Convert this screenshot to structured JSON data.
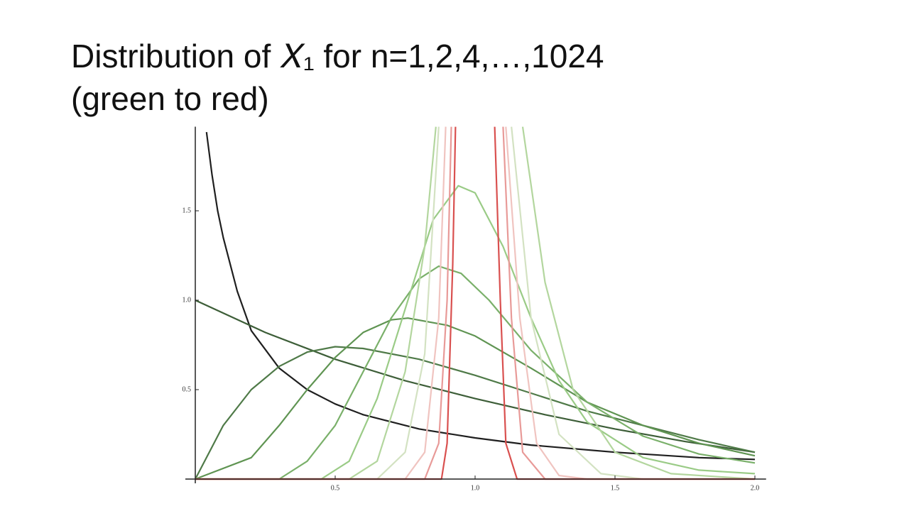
{
  "chart_data": {
    "type": "line",
    "title_lines": [
      "Distribution of 𝑋₁ for n=1,2,4,…,1024",
      "(green to red)"
    ],
    "xlim": [
      0,
      2.04
    ],
    "ylim": [
      0,
      1.97
    ],
    "xticks": [
      0.5,
      {
        "value": 1,
        "label": "1.0"
      },
      1.5,
      {
        "value": 2,
        "label": "2.0"
      }
    ],
    "yticks": [
      0.5,
      {
        "value": 1,
        "label": "1.0"
      },
      1.5
    ],
    "series": [
      {
        "color": "#1f1f1f",
        "x": [
          0.04,
          0.06,
          0.08,
          0.1,
          0.15,
          0.2,
          0.3,
          0.4,
          0.5,
          0.6,
          0.8,
          1.0,
          1.2,
          1.5,
          1.8,
          2.0
        ],
        "values": [
          1.94,
          1.7,
          1.5,
          1.35,
          1.05,
          0.83,
          0.62,
          0.5,
          0.42,
          0.36,
          0.28,
          0.23,
          0.19,
          0.15,
          0.12,
          0.11
        ]
      },
      {
        "color": "#3d5e38",
        "x": [
          0,
          0.25,
          0.5,
          0.75,
          1.0,
          1.25,
          1.5,
          1.75,
          2.0
        ],
        "values": [
          1.0,
          0.82,
          0.67,
          0.55,
          0.45,
          0.36,
          0.28,
          0.21,
          0.15
        ]
      },
      {
        "color": "#4f7a48",
        "x": [
          0,
          0.1,
          0.2,
          0.3,
          0.4,
          0.5,
          0.6,
          0.8,
          1.0,
          1.2,
          1.4,
          1.6,
          1.8,
          2.0
        ],
        "values": [
          0,
          0.3,
          0.5,
          0.63,
          0.71,
          0.74,
          0.73,
          0.67,
          0.58,
          0.48,
          0.38,
          0.3,
          0.22,
          0.15
        ]
      },
      {
        "color": "#5f9452",
        "x": [
          0,
          0.2,
          0.3,
          0.4,
          0.5,
          0.6,
          0.7,
          0.76,
          0.9,
          1.0,
          1.2,
          1.4,
          1.6,
          1.8,
          2.0
        ],
        "values": [
          0,
          0.12,
          0.3,
          0.5,
          0.68,
          0.82,
          0.89,
          0.9,
          0.86,
          0.8,
          0.62,
          0.43,
          0.3,
          0.2,
          0.13
        ]
      },
      {
        "color": "#7ab06a",
        "x": [
          0,
          0.3,
          0.4,
          0.5,
          0.6,
          0.7,
          0.8,
          0.87,
          0.95,
          1.05,
          1.2,
          1.4,
          1.6,
          1.8,
          2.0
        ],
        "values": [
          0,
          0,
          0.1,
          0.3,
          0.6,
          0.9,
          1.12,
          1.19,
          1.15,
          1.0,
          0.72,
          0.43,
          0.24,
          0.14,
          0.09
        ]
      },
      {
        "color": "#9acb86",
        "x": [
          0,
          0.45,
          0.55,
          0.65,
          0.75,
          0.85,
          0.94,
          1.0,
          1.1,
          1.2,
          1.3,
          1.4,
          1.6,
          1.8,
          2.0
        ],
        "values": [
          0,
          0,
          0.1,
          0.45,
          0.95,
          1.45,
          1.64,
          1.6,
          1.3,
          0.9,
          0.55,
          0.32,
          0.12,
          0.05,
          0.03
        ]
      },
      {
        "color": "#b3d69e",
        "x": [
          0,
          0.55,
          0.65,
          0.75,
          0.82,
          0.86,
          1.0,
          1.17,
          1.25,
          1.35,
          1.5,
          1.7,
          2.0
        ],
        "values": [
          0,
          0,
          0.1,
          0.6,
          1.3,
          1.97,
          null,
          1.97,
          1.1,
          0.5,
          0.15,
          0.03,
          0
        ]
      },
      {
        "color": "#d3e2c2",
        "x": [
          0,
          0.65,
          0.75,
          0.82,
          0.87,
          1.0,
          1.13,
          1.2,
          1.3,
          1.45,
          1.6,
          2.0
        ],
        "values": [
          0,
          0,
          0.15,
          0.7,
          1.97,
          null,
          1.97,
          0.9,
          0.25,
          0.03,
          0,
          0
        ]
      },
      {
        "color": "#f0c4c0",
        "x": [
          0,
          0.75,
          0.82,
          0.87,
          0.895,
          1.0,
          1.11,
          1.16,
          1.22,
          1.3,
          1.4,
          2.0
        ],
        "values": [
          0,
          0,
          0.15,
          0.9,
          1.97,
          null,
          1.97,
          0.9,
          0.2,
          0.02,
          0,
          0
        ]
      },
      {
        "color": "#e89a98",
        "x": [
          0,
          0.82,
          0.87,
          0.9,
          0.915,
          1.0,
          1.1,
          1.13,
          1.17,
          1.25,
          2.0
        ],
        "values": [
          0,
          0,
          0.2,
          1.0,
          1.97,
          null,
          1.97,
          0.9,
          0.15,
          0,
          0
        ]
      },
      {
        "color": "#d9504f",
        "x": [
          0,
          0.88,
          0.9,
          0.92,
          0.93,
          1.0,
          1.07,
          1.09,
          1.11,
          1.15,
          2.0
        ],
        "values": [
          0,
          0,
          0.2,
          1.2,
          1.97,
          null,
          1.97,
          1.0,
          0.2,
          0,
          0
        ]
      }
    ]
  }
}
